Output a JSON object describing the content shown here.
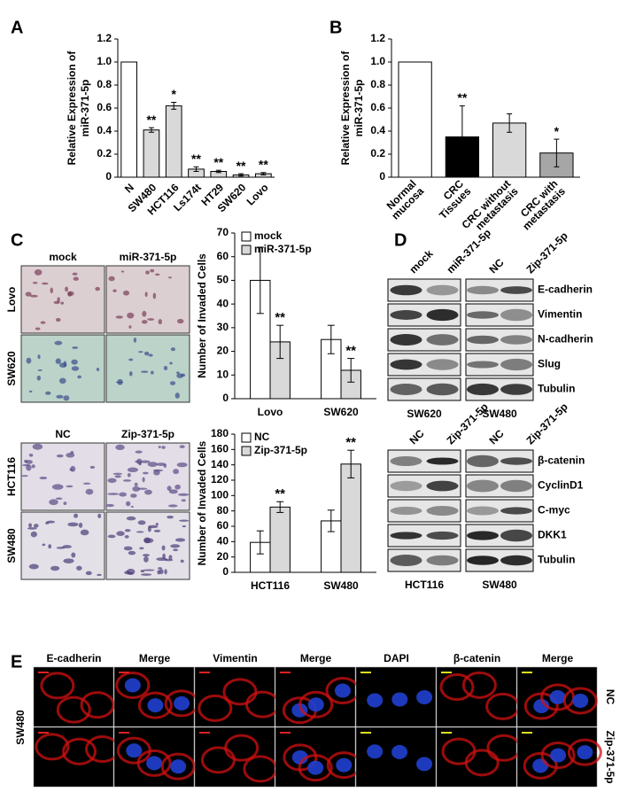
{
  "chart_data": [
    {
      "type": "bar",
      "ylabel": [
        "Relative Expression of",
        "miR-371-5p"
      ],
      "categories": [
        "N",
        "SW480",
        "HCT116",
        "Ls174t",
        "HT29",
        "SW620",
        "Lovo"
      ],
      "values": [
        1.0,
        0.41,
        0.62,
        0.07,
        0.05,
        0.02,
        0.03
      ],
      "errors": [
        null,
        0.02,
        0.03,
        0.02,
        0.01,
        0.01,
        0.01
      ],
      "colors": [
        "#ffffff",
        "#d9d9d9",
        "#d9d9d9",
        "#d9d9d9",
        "#d9d9d9",
        "#d9d9d9",
        "#d9d9d9"
      ],
      "annotations": [
        null,
        "**",
        "*",
        "**",
        "**",
        "**",
        "**"
      ],
      "ylim": [
        0,
        1.2
      ],
      "yticks": [
        0,
        0.2,
        0.4,
        0.6,
        0.8,
        {
          "value": 1,
          "label": "1.0"
        },
        1.2
      ]
    },
    {
      "type": "bar",
      "ylabel": [
        "Relative Expression of",
        "miR-371-5p"
      ],
      "categories": [
        [
          "Normal",
          "mucosa"
        ],
        [
          "CRC",
          "Tissues"
        ],
        [
          "CRC without",
          "metastasis"
        ],
        [
          "CRC with",
          "metastasis"
        ]
      ],
      "values": [
        1.0,
        0.35,
        0.47,
        0.21
      ],
      "errors": [
        null,
        0.27,
        0.08,
        0.12
      ],
      "colors": [
        "#ffffff",
        "#000000",
        "#d9d9d9",
        "#a6a6a6"
      ],
      "annotations": [
        null,
        "**",
        null,
        "*"
      ],
      "ylim": [
        0,
        1.2
      ],
      "yticks": [
        0,
        0.2,
        0.4,
        0.6,
        0.8,
        {
          "value": 1,
          "label": "1.0"
        },
        1.2
      ]
    },
    {
      "type": "grouped-bar",
      "ylabel": [
        "Number of Invaded Cells"
      ],
      "categories": [
        "Lovo",
        "SW620"
      ],
      "series": [
        {
          "name": "mock",
          "color": "#ffffff",
          "values": [
            50,
            25
          ],
          "errors": [
            14,
            6
          ]
        },
        {
          "name": "miR-371-5p",
          "color": "#d9d9d9",
          "values": [
            24,
            12
          ],
          "errors": [
            7,
            5
          ],
          "annotations": [
            "**",
            "**"
          ]
        }
      ],
      "ylim": [
        0,
        70
      ],
      "yticks": [
        0,
        10,
        20,
        30,
        40,
        50,
        60,
        70
      ]
    },
    {
      "type": "grouped-bar",
      "ylabel": [
        "Number of Invaded Cells"
      ],
      "categories": [
        "HCT116",
        "SW480"
      ],
      "series": [
        {
          "name": "NC",
          "color": "#ffffff",
          "values": [
            39,
            67
          ],
          "errors": [
            15,
            14
          ]
        },
        {
          "name": "Zip-371-5p",
          "color": "#d9d9d9",
          "values": [
            85,
            141
          ],
          "errors": [
            7,
            18
          ],
          "annotations": [
            "**",
            "**"
          ]
        }
      ],
      "ylim": [
        0,
        180
      ],
      "yticks": [
        0,
        20,
        40,
        60,
        80,
        100,
        120,
        140,
        160,
        180
      ]
    }
  ],
  "panel_labels": [
    "A",
    "B",
    "C",
    "D",
    "E"
  ],
  "panel_c": [
    {
      "columns": [
        "mock",
        "miR-371-5p"
      ],
      "rows": [
        "Lovo",
        "SW620"
      ]
    },
    {
      "columns": [
        "NC",
        "Zip-371-5p"
      ],
      "rows": [
        "HCT116",
        "SW480"
      ]
    }
  ],
  "panel_d": [
    {
      "lanes": [
        "mock",
        "miR-371-5p",
        "NC",
        "Zip-371-5p"
      ],
      "proteins": [
        "E-cadherin",
        "Vimentin",
        "N-cadherin",
        "Slug",
        "Tubulin"
      ],
      "cell_lines": [
        "SW620",
        "SW480"
      ]
    },
    {
      "lanes": [
        "NC",
        "Zip-371-5p",
        "NC",
        "Zip-371-5p"
      ],
      "proteins": [
        "β-catenin",
        "CyclinD1",
        "C-myc",
        "DKK1",
        "Tubulin"
      ],
      "cell_lines": [
        "HCT116",
        "SW480"
      ]
    }
  ],
  "panel_e": {
    "columns": [
      "E-cadherin",
      "Merge",
      "Vimentin",
      "Merge",
      "DAPI",
      "β-catenin",
      "Merge"
    ],
    "column_colors": [
      "#e0201c",
      "#000000",
      "#e0201c",
      "#000000",
      "#000000",
      "#e0201c",
      "#000000"
    ],
    "rows": [
      "NC",
      "Zip-371-5p"
    ],
    "cell_line": "SW480"
  }
}
